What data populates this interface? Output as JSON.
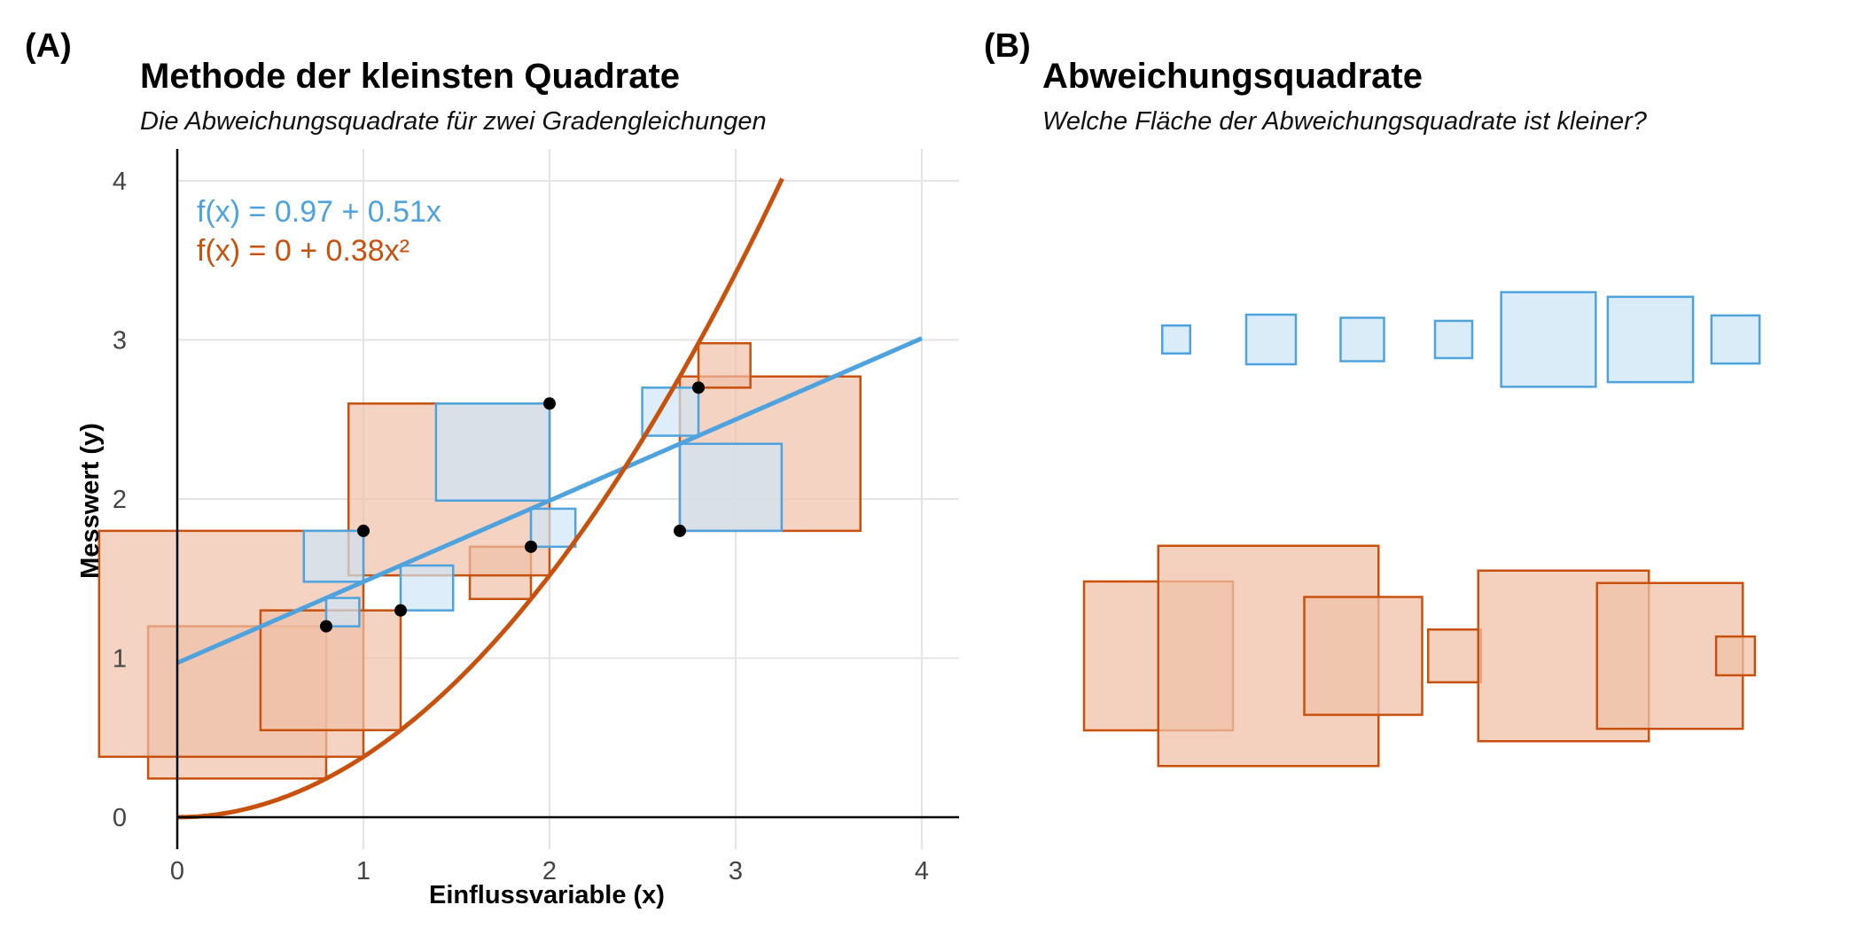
{
  "colors": {
    "linear": "#4ea3de",
    "linear_fill": "#cfe6f7",
    "quadratic": "#c8510d",
    "quadratic_fill": "#f0c1a8",
    "grid": "#e4e4e4",
    "axis": "#000000"
  },
  "chart_data": [
    {
      "panel": "(A)",
      "type": "scatter",
      "title": "Methode der kleinsten Quadrate",
      "subtitle": "Die Abweichungsquadrate für zwei Gradengleichungen",
      "xlabel": "Einflussvariable (x)",
      "ylabel": "Messwert (y)",
      "xlim": [
        0,
        4.2
      ],
      "ylim": [
        -0.2,
        4.2
      ],
      "xticks": [
        "0",
        "1",
        "2",
        "3",
        "4"
      ],
      "yticks": [
        "0",
        "1",
        "2",
        "3",
        "4"
      ],
      "grid": true,
      "points": [
        {
          "x": 0.8,
          "y": 1.2
        },
        {
          "x": 1.0,
          "y": 1.8
        },
        {
          "x": 1.2,
          "y": 1.3
        },
        {
          "x": 1.9,
          "y": 1.7
        },
        {
          "x": 2.0,
          "y": 2.6
        },
        {
          "x": 2.7,
          "y": 1.8
        },
        {
          "x": 2.8,
          "y": 2.7
        }
      ],
      "series": [
        {
          "name": "f(x) = 0.97 + 0.51x",
          "kind": "linear",
          "intercept": 0.97,
          "slope": 0.51,
          "x_range": [
            0,
            4
          ]
        },
        {
          "name": "f(x) = 0 + 0.38x²",
          "kind": "quadratic",
          "intercept": 0,
          "coef": 0.38,
          "x_range": [
            0,
            3.25
          ]
        }
      ]
    },
    {
      "panel": "(B)",
      "type": "other",
      "title": "Abweichungsquadrate",
      "subtitle": "Welche Fläche der Abweichungsquadrate ist kleiner?",
      "rows": [
        {
          "series": "linear",
          "sides": [
            0.18,
            0.32,
            0.28,
            0.24,
            0.61,
            0.55,
            0.31
          ]
        },
        {
          "series": "quadratic",
          "sides": [
            0.96,
            1.42,
            0.76,
            0.34,
            1.1,
            0.94,
            0.25
          ]
        }
      ]
    }
  ]
}
